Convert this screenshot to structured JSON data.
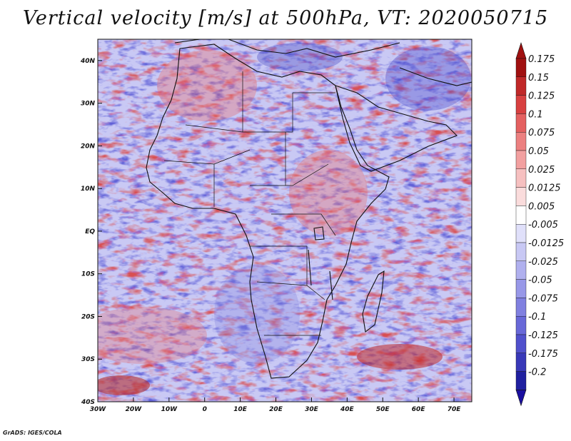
{
  "title": "Vertical velocity [m/s] at 500hPa, VT: 2020050715",
  "credit": "GrADS: IGES/COLA",
  "map": {
    "lon_range": [
      -30,
      75
    ],
    "lat_range": [
      -40,
      45
    ],
    "lon_ticks": [
      {
        "value": -30,
        "label": "30W"
      },
      {
        "value": -20,
        "label": "20W"
      },
      {
        "value": -10,
        "label": "10W"
      },
      {
        "value": 0,
        "label": "0"
      },
      {
        "value": 10,
        "label": "10E"
      },
      {
        "value": 20,
        "label": "20E"
      },
      {
        "value": 30,
        "label": "30E"
      },
      {
        "value": 40,
        "label": "40E"
      },
      {
        "value": 50,
        "label": "50E"
      },
      {
        "value": 60,
        "label": "60E"
      },
      {
        "value": 70,
        "label": "70E"
      }
    ],
    "lat_ticks": [
      {
        "value": 40,
        "label": "40N"
      },
      {
        "value": 30,
        "label": "30N"
      },
      {
        "value": 20,
        "label": "20N"
      },
      {
        "value": 10,
        "label": "10N"
      },
      {
        "value": 0,
        "label": "EQ"
      },
      {
        "value": -10,
        "label": "10S"
      },
      {
        "value": -20,
        "label": "20S"
      },
      {
        "value": -30,
        "label": "30S"
      },
      {
        "value": -40,
        "label": "40S"
      }
    ],
    "field_notes": {
      "ascent_color": "#5a5ad8",
      "descent_color": "#e05050",
      "neutral_color": "#ffffff"
    }
  },
  "colorbar": {
    "levels": [
      {
        "label": "0.175",
        "color": "#a01010"
      },
      {
        "label": "0.15",
        "color": "#c02828"
      },
      {
        "label": "0.125",
        "color": "#d84040"
      },
      {
        "label": "0.1",
        "color": "#e46060"
      },
      {
        "label": "0.075",
        "color": "#ec8080"
      },
      {
        "label": "0.05",
        "color": "#f2a0a0"
      },
      {
        "label": "0.025",
        "color": "#f6c0c0"
      },
      {
        "label": "0.0125",
        "color": "#fadcdc"
      },
      {
        "label": "0.005",
        "color": "#ffffff"
      },
      {
        "label": "-0.005",
        "color": "#e0e0fa"
      },
      {
        "label": "-0.0125",
        "color": "#c8c8f4"
      },
      {
        "label": "-0.025",
        "color": "#b0b0ee"
      },
      {
        "label": "-0.05",
        "color": "#9898e8"
      },
      {
        "label": "-0.075",
        "color": "#8080e0"
      },
      {
        "label": "-0.1",
        "color": "#6868d8"
      },
      {
        "label": "-0.125",
        "color": "#5050cc"
      },
      {
        "label": "-0.175",
        "color": "#3838b8"
      },
      {
        "label": "-0.2",
        "color": "#2020a0"
      }
    ],
    "top_arrow_color": "#a01010",
    "bottom_arrow_color": "#1a0fa0"
  }
}
